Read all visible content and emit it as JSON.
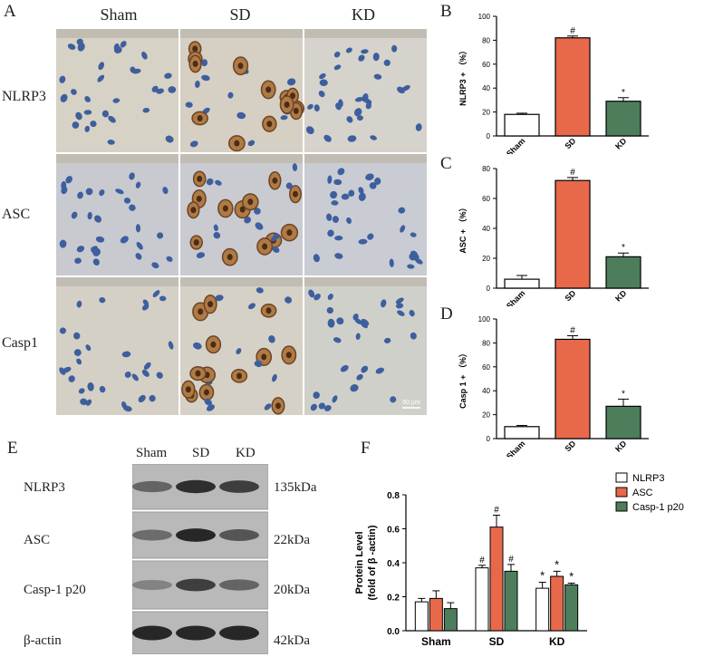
{
  "figure": {
    "panel_labels": {
      "A": "A",
      "B": "B",
      "C": "C",
      "D": "D",
      "E": "E",
      "F": "F"
    },
    "micrographs": {
      "columns": [
        "Sham",
        "SD",
        "KD"
      ],
      "rows": [
        "NLRP3",
        "ASC",
        "Casp1"
      ],
      "scale_bar": "50 μm"
    },
    "western_blot": {
      "lanes": [
        "Sham",
        "SD",
        "KD"
      ],
      "proteins": [
        {
          "name": "NLRP3",
          "size": "135kDa"
        },
        {
          "name": "ASC",
          "size": "22kDa"
        },
        {
          "name": "Casp-1 p20",
          "size": "20kDa"
        },
        {
          "name": "β-actin",
          "size": "42kDa"
        }
      ]
    }
  },
  "chart_data": [
    {
      "type": "bar",
      "panel": "B",
      "categories": [
        "Sham",
        "SD",
        "KD"
      ],
      "values": [
        18,
        82,
        29
      ],
      "errors": [
        1,
        1.5,
        3
      ],
      "markers": [
        "",
        "#",
        "*"
      ],
      "colors": [
        "#ffffff",
        "#e8694a",
        "#4e7d5c"
      ],
      "ylabel": "NLRP3 + （%）",
      "ylim": [
        0,
        100
      ],
      "yticks": [
        0,
        20,
        40,
        60,
        80,
        100
      ]
    },
    {
      "type": "bar",
      "panel": "C",
      "categories": [
        "Sham",
        "SD",
        "KD"
      ],
      "values": [
        6,
        72,
        21
      ],
      "errors": [
        2.5,
        2,
        2.5
      ],
      "markers": [
        "",
        "#",
        "*"
      ],
      "colors": [
        "#ffffff",
        "#e8694a",
        "#4e7d5c"
      ],
      "ylabel": "ASC + （%）",
      "ylim": [
        0,
        80
      ],
      "yticks": [
        0,
        20,
        40,
        60,
        80
      ]
    },
    {
      "type": "bar",
      "panel": "D",
      "categories": [
        "Sham",
        "SD",
        "KD"
      ],
      "values": [
        10,
        83,
        27
      ],
      "errors": [
        1,
        3,
        6
      ],
      "markers": [
        "",
        "#",
        "*"
      ],
      "colors": [
        "#ffffff",
        "#e8694a",
        "#4e7d5c"
      ],
      "ylabel": "Casp 1 + （%）",
      "ylim": [
        0,
        100
      ],
      "yticks": [
        0,
        20,
        40,
        60,
        80,
        100
      ]
    },
    {
      "type": "bar",
      "panel": "F",
      "categories": [
        "Sham",
        "SD",
        "KD"
      ],
      "ylabel_line1": "Protein Level",
      "ylabel_line2": "(fold of β -actin)",
      "ylim": [
        0,
        0.8
      ],
      "yticks": [
        0.0,
        0.2,
        0.4,
        0.6,
        0.8
      ],
      "legend": "right",
      "series": [
        {
          "name": "NLRP3",
          "color": "#ffffff",
          "values": [
            0.17,
            0.37,
            0.25
          ],
          "errors": [
            0.02,
            0.015,
            0.035
          ],
          "markers": [
            "",
            "#",
            "*"
          ]
        },
        {
          "name": "ASC",
          "color": "#e8694a",
          "values": [
            0.19,
            0.61,
            0.32
          ],
          "errors": [
            0.045,
            0.07,
            0.03
          ],
          "markers": [
            "",
            "#",
            "*"
          ]
        },
        {
          "name": "Casp-1 p20",
          "color": "#4e7d5c",
          "values": [
            0.13,
            0.35,
            0.27
          ],
          "errors": [
            0.035,
            0.04,
            0.01
          ],
          "markers": [
            "",
            "#",
            "*"
          ]
        }
      ]
    }
  ]
}
